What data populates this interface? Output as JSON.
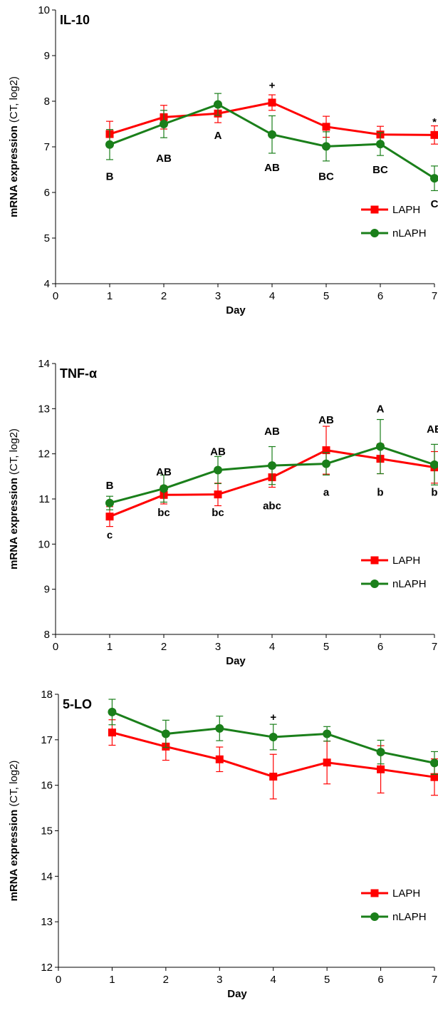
{
  "chart_data": [
    {
      "type": "line",
      "title": "IL-10",
      "ylabel_bold": "mRNA expression",
      "ylabel_rest": " (CT, log2)",
      "xlabel": "Day",
      "xlim": [
        0,
        7
      ],
      "ylim": [
        4,
        10
      ],
      "x_ticks": [
        "0",
        "1",
        "2",
        "3",
        "4",
        "5",
        "6",
        "7"
      ],
      "y_ticks": [
        "4",
        "5",
        "6",
        "7",
        "8",
        "9",
        "10"
      ],
      "series": [
        {
          "name": "LAPH",
          "color": "#ff0000",
          "marker": "square",
          "x": [
            1,
            2,
            3,
            4,
            5,
            6,
            7
          ],
          "values": [
            7.28,
            7.65,
            7.73,
            7.97,
            7.44,
            7.27,
            7.26
          ],
          "errors": [
            0.28,
            0.26,
            0.2,
            0.17,
            0.23,
            0.18,
            0.2
          ]
        },
        {
          "name": "nLAPH",
          "color": "#1a7f1a",
          "marker": "circle",
          "x": [
            1,
            2,
            3,
            4,
            5,
            6,
            7
          ],
          "values": [
            7.05,
            7.5,
            7.93,
            7.27,
            7.01,
            7.06,
            6.31
          ],
          "errors": [
            0.33,
            0.3,
            0.24,
            0.41,
            0.32,
            0.25,
            0.27
          ]
        }
      ],
      "annotations": [
        {
          "x": 1,
          "y": 6.35,
          "text": "B"
        },
        {
          "x": 2,
          "y": 6.75,
          "text": "AB"
        },
        {
          "x": 3,
          "y": 7.25,
          "text": "A"
        },
        {
          "x": 4,
          "y": 8.35,
          "text": "+"
        },
        {
          "x": 4,
          "y": 6.55,
          "text": "AB"
        },
        {
          "x": 5,
          "y": 6.35,
          "text": "BC"
        },
        {
          "x": 6,
          "y": 6.5,
          "text": "BC"
        },
        {
          "x": 7,
          "y": 7.55,
          "text": "*"
        },
        {
          "x": 7,
          "y": 5.75,
          "text": "C"
        }
      ],
      "legend": "bottom-right"
    },
    {
      "type": "line",
      "title": "TNF-α",
      "ylabel_bold": "mRNA expression",
      "ylabel_rest": " (CT, log2)",
      "xlabel": "Day",
      "xlim": [
        0,
        7
      ],
      "ylim": [
        8,
        14
      ],
      "x_ticks": [
        "0",
        "1",
        "2",
        "3",
        "4",
        "5",
        "6",
        "7"
      ],
      "y_ticks": [
        "8",
        "9",
        "10",
        "11",
        "12",
        "13",
        "14"
      ],
      "series": [
        {
          "name": "LAPH",
          "color": "#ff0000",
          "marker": "square",
          "x": [
            1,
            2,
            3,
            4,
            5,
            6,
            7
          ],
          "values": [
            10.61,
            11.09,
            11.1,
            11.48,
            12.08,
            11.89,
            11.7
          ],
          "errors": [
            0.22,
            0.2,
            0.25,
            0.22,
            0.53,
            0.33,
            0.35
          ]
        },
        {
          "name": "nLAPH",
          "color": "#1a7f1a",
          "marker": "circle",
          "x": [
            1,
            2,
            3,
            4,
            5,
            6,
            7
          ],
          "values": [
            10.91,
            11.23,
            11.64,
            11.74,
            11.78,
            12.16,
            11.76
          ],
          "errors": [
            0.15,
            0.3,
            0.3,
            0.42,
            0.25,
            0.6,
            0.45
          ]
        }
      ],
      "annotations": [
        {
          "x": 1,
          "y": 11.3,
          "text": "B"
        },
        {
          "x": 1,
          "y": 10.2,
          "text": "c"
        },
        {
          "x": 2,
          "y": 11.6,
          "text": "AB"
        },
        {
          "x": 2,
          "y": 10.7,
          "text": "bc"
        },
        {
          "x": 3,
          "y": 12.05,
          "text": "AB"
        },
        {
          "x": 3,
          "y": 10.7,
          "text": "bc"
        },
        {
          "x": 4,
          "y": 12.5,
          "text": "AB"
        },
        {
          "x": 4,
          "y": 10.85,
          "text": "abc"
        },
        {
          "x": 5,
          "y": 12.75,
          "text": "AB"
        },
        {
          "x": 5,
          "y": 11.15,
          "text": "a"
        },
        {
          "x": 6,
          "y": 13.0,
          "text": "A"
        },
        {
          "x": 6,
          "y": 11.15,
          "text": "b"
        },
        {
          "x": 7,
          "y": 12.55,
          "text": "AB"
        },
        {
          "x": 7,
          "y": 11.15,
          "text": "b"
        }
      ],
      "legend": "bottom-right"
    },
    {
      "type": "line",
      "title": "5-LO",
      "ylabel_bold": "mRNA expression",
      "ylabel_rest": " (CT, log2)",
      "xlabel": "Day",
      "xlim": [
        0,
        7
      ],
      "ylim": [
        12,
        18
      ],
      "x_ticks": [
        "0",
        "1",
        "2",
        "3",
        "4",
        "5",
        "6",
        "7"
      ],
      "y_ticks": [
        "12",
        "13",
        "14",
        "15",
        "16",
        "17",
        "18"
      ],
      "series": [
        {
          "name": "LAPH",
          "color": "#ff0000",
          "marker": "square",
          "x": [
            1,
            2,
            3,
            4,
            5,
            6,
            7
          ],
          "values": [
            17.16,
            16.85,
            16.57,
            16.19,
            16.5,
            16.35,
            16.18
          ],
          "errors": [
            0.28,
            0.3,
            0.27,
            0.49,
            0.47,
            0.52,
            0.4
          ]
        },
        {
          "name": "nLAPH",
          "color": "#1a7f1a",
          "marker": "circle",
          "x": [
            1,
            2,
            3,
            4,
            5,
            6,
            7
          ],
          "values": [
            17.61,
            17.13,
            17.25,
            17.06,
            17.13,
            16.73,
            16.49
          ],
          "errors": [
            0.28,
            0.3,
            0.27,
            0.28,
            0.16,
            0.26,
            0.25
          ]
        }
      ],
      "annotations": [
        {
          "x": 4,
          "y": 17.5,
          "text": "+"
        }
      ],
      "legend": "bottom-right"
    }
  ]
}
